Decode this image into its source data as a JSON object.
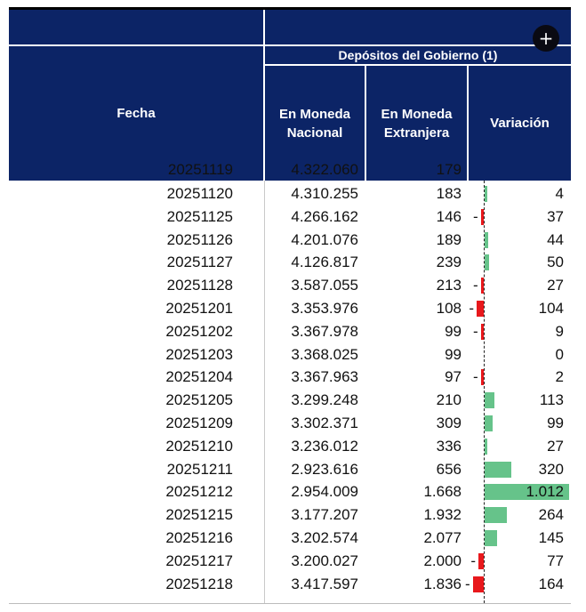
{
  "header": {
    "group_title": "Depósitos del Gobierno (1)",
    "col_fecha": "Fecha",
    "col_mn_line1": "En Moneda",
    "col_mn_line2": "Nacional",
    "col_me_line1": "En Moneda",
    "col_me_line2": "Extranjera",
    "col_var": "Variación",
    "add_button": "+"
  },
  "colors": {
    "header_bg": "#0c2466",
    "positive_bar": "#66c38a",
    "negative_bar": "#e8181c"
  },
  "partial_row": {
    "fecha": "20251119",
    "mn": "4.322.060",
    "me": "179"
  },
  "rows": [
    {
      "fecha": "20251120",
      "mn": "4.310.255",
      "me": "183",
      "var": "4",
      "var_value": 4
    },
    {
      "fecha": "20251125",
      "mn": "4.266.162",
      "me": "146",
      "var": "37",
      "var_value": -37
    },
    {
      "fecha": "20251126",
      "mn": "4.201.076",
      "me": "189",
      "var": "44",
      "var_value": 44
    },
    {
      "fecha": "20251127",
      "mn": "4.126.817",
      "me": "239",
      "var": "50",
      "var_value": 50
    },
    {
      "fecha": "20251128",
      "mn": "3.587.055",
      "me": "213",
      "var": "27",
      "var_value": -27
    },
    {
      "fecha": "20251201",
      "mn": "3.353.976",
      "me": "108",
      "var": "104",
      "var_value": -104
    },
    {
      "fecha": "20251202",
      "mn": "3.367.978",
      "me": "99",
      "var": "9",
      "var_value": -9
    },
    {
      "fecha": "20251203",
      "mn": "3.368.025",
      "me": "99",
      "var": "0",
      "var_value": 0
    },
    {
      "fecha": "20251204",
      "mn": "3.367.963",
      "me": "97",
      "var": "2",
      "var_value": -2
    },
    {
      "fecha": "20251205",
      "mn": "3.299.248",
      "me": "210",
      "var": "113",
      "var_value": 113
    },
    {
      "fecha": "20251209",
      "mn": "3.302.371",
      "me": "309",
      "var": "99",
      "var_value": 99
    },
    {
      "fecha": "20251210",
      "mn": "3.236.012",
      "me": "336",
      "var": "27",
      "var_value": 27
    },
    {
      "fecha": "20251211",
      "mn": "2.923.616",
      "me": "656",
      "var": "320",
      "var_value": 320
    },
    {
      "fecha": "20251212",
      "mn": "2.954.009",
      "me": "1.668",
      "var": "1.012",
      "var_value": 1012
    },
    {
      "fecha": "20251215",
      "mn": "3.177.207",
      "me": "1.932",
      "var": "264",
      "var_value": 264
    },
    {
      "fecha": "20251216",
      "mn": "3.202.574",
      "me": "2.077",
      "var": "145",
      "var_value": 145
    },
    {
      "fecha": "20251217",
      "mn": "3.200.027",
      "me": "2.000",
      "var": "77",
      "var_value": -77
    },
    {
      "fecha": "20251218",
      "mn": "3.417.597",
      "me": "1.836",
      "var": "164",
      "var_value": -164
    }
  ]
}
